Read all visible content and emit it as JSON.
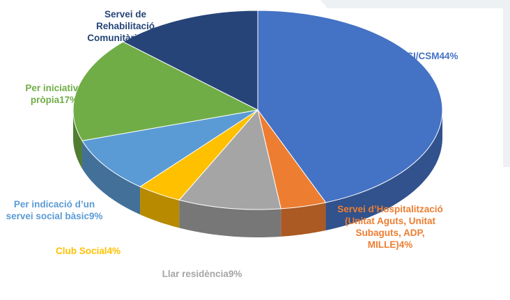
{
  "chart_data": {
    "type": "pie",
    "categories": [
      "PSI/CSM",
      "Servei d’Hospitalització (Unitat Aguts, Unitat Subaguts, ADP, MILLE)",
      "Llar residència",
      "Club Social",
      "Per indicació d’un servei social bàsic",
      "Per iniciativa pròpia",
      "Servei de Rehabilitació Comunitària"
    ],
    "values": [
      44,
      4,
      9,
      4,
      9,
      17,
      13
    ],
    "value_labels": [
      "44%",
      "4%",
      "9%",
      "4%",
      "9%",
      "17%",
      "13 %"
    ],
    "colors": [
      "#4472c4",
      "#ed7d31",
      "#a5a5a5",
      "#ffc000",
      "#5b9bd5",
      "#70ad47",
      "#264478"
    ]
  }
}
